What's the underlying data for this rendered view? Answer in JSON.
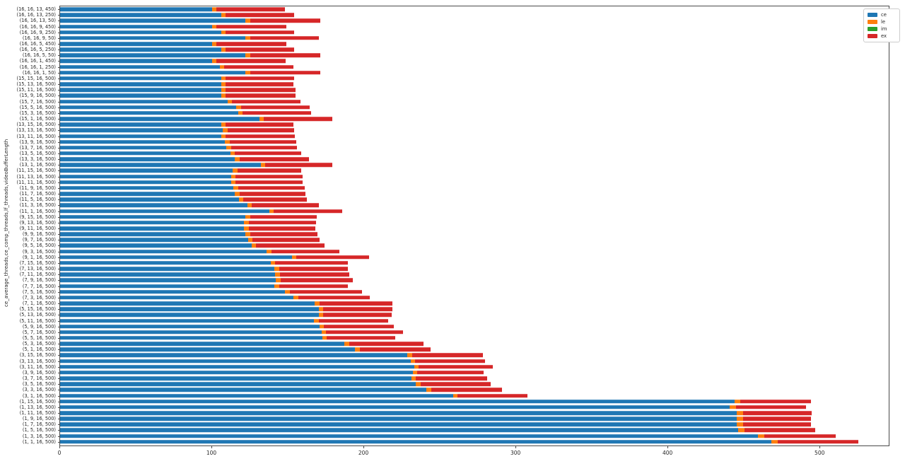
{
  "chart_data": {
    "type": "bar",
    "orientation": "horizontal",
    "stacked": true,
    "title": "",
    "xlabel": "",
    "ylabel": "ce_average_threads,ce_comp_threads,lf_threads,videoBufferLength",
    "xlim": [
      0,
      545
    ],
    "xticks": [
      0,
      100,
      200,
      300,
      400,
      500
    ],
    "grid": false,
    "legend_position": "upper right",
    "categories": [
      "(16, 16, 13, 450)",
      "(16, 16, 13, 250)",
      "(16, 16, 13, 50)",
      "(16, 16, 9, 450)",
      "(16, 16, 9, 250)",
      "(16, 16, 9, 50)",
      "(16, 16, 5, 450)",
      "(16, 16, 5, 250)",
      "(16, 16, 5, 50)",
      "(16, 16, 1, 450)",
      "(16, 16, 1, 250)",
      "(16, 16, 1, 50)",
      "(15, 15, 16, 500)",
      "(15, 13, 16, 500)",
      "(15, 11, 16, 500)",
      "(15, 9, 16, 500)",
      "(15, 7, 16, 500)",
      "(15, 5, 16, 500)",
      "(15, 3, 16, 500)",
      "(15, 1, 16, 500)",
      "(13, 15, 16, 500)",
      "(13, 13, 16, 500)",
      "(13, 11, 16, 500)",
      "(13, 9, 16, 500)",
      "(13, 7, 16, 500)",
      "(13, 5, 16, 500)",
      "(13, 3, 16, 500)",
      "(13, 1, 16, 500)",
      "(11, 15, 16, 500)",
      "(11, 13, 16, 500)",
      "(11, 11, 16, 500)",
      "(11, 9, 16, 500)",
      "(11, 7, 16, 500)",
      "(11, 5, 16, 500)",
      "(11, 3, 16, 500)",
      "(11, 1, 16, 500)",
      "(9, 15, 16, 500)",
      "(9, 13, 16, 500)",
      "(9, 11, 16, 500)",
      "(9, 9, 16, 500)",
      "(9, 7, 16, 500)",
      "(9, 5, 16, 500)",
      "(9, 3, 16, 500)",
      "(9, 1, 16, 500)",
      "(7, 15, 16, 500)",
      "(7, 13, 16, 500)",
      "(7, 11, 16, 500)",
      "(7, 9, 16, 500)",
      "(7, 7, 16, 500)",
      "(7, 5, 16, 500)",
      "(7, 3, 16, 500)",
      "(7, 1, 16, 500)",
      "(5, 15, 16, 500)",
      "(5, 13, 16, 500)",
      "(5, 11, 16, 500)",
      "(5, 9, 16, 500)",
      "(5, 7, 16, 500)",
      "(5, 5, 16, 500)",
      "(5, 3, 16, 500)",
      "(5, 1, 16, 500)",
      "(3, 15, 16, 500)",
      "(3, 13, 16, 500)",
      "(3, 11, 16, 500)",
      "(3, 9, 16, 500)",
      "(3, 7, 16, 500)",
      "(3, 5, 16, 500)",
      "(3, 3, 16, 500)",
      "(3, 1, 16, 500)",
      "(1, 15, 16, 500)",
      "(1, 13, 16, 500)",
      "(1, 11, 16, 500)",
      "(1, 9, 16, 500)",
      "(1, 7, 16, 500)",
      "(1, 5, 16, 500)",
      "(1, 3, 16, 500)",
      "(1, 1, 16, 500)"
    ],
    "series": [
      {
        "name": "ce",
        "color": "#1f77b4",
        "values": [
          100,
          106,
          122,
          100,
          106,
          122,
          100,
          106,
          122,
          100,
          105,
          122,
          106,
          106,
          106,
          106,
          110,
          116,
          117,
          131,
          106,
          107,
          106,
          108.5,
          109.5,
          112,
          115,
          132,
          113.5,
          112.5,
          112.5,
          114,
          115,
          117.5,
          123,
          137.5,
          122,
          121,
          121,
          122,
          123.5,
          126,
          136,
          152.5,
          138.5,
          141,
          141.5,
          142,
          141,
          148,
          153.5,
          167.5,
          170,
          170,
          167,
          170.5,
          172,
          172.5,
          187,
          194,
          228.5,
          230.5,
          233,
          232,
          231,
          234,
          241,
          258.5,
          443.5,
          440.5,
          445,
          445,
          445,
          446,
          459,
          468
        ]
      },
      {
        "name": "le",
        "color": "#ff7f0e",
        "values": [
          3,
          3,
          3,
          3,
          3,
          3,
          3,
          3,
          3,
          3,
          3,
          3,
          3,
          3,
          3,
          3,
          3,
          3,
          3,
          3,
          3,
          3,
          3,
          3,
          3,
          3,
          3,
          3,
          3,
          3,
          3,
          3,
          3,
          3,
          3,
          3,
          3,
          3,
          3,
          3,
          3,
          3,
          3,
          3,
          3,
          3,
          3,
          3,
          3,
          3,
          3,
          3,
          3,
          3,
          3,
          3,
          3,
          3,
          3,
          3,
          3,
          3,
          3,
          3,
          3,
          3,
          3,
          3,
          4,
          4,
          4,
          4,
          4,
          4,
          4,
          4
        ]
      },
      {
        "name": "im",
        "color": "#2ca02c",
        "values": [
          0,
          0,
          0,
          0,
          0,
          0,
          0,
          0,
          0,
          0,
          0,
          0,
          0,
          0,
          0,
          0,
          0,
          0,
          0,
          0,
          0,
          0,
          0,
          0,
          0,
          0,
          0,
          0,
          0,
          0,
          0,
          0,
          0,
          0,
          0,
          0,
          0,
          0,
          0,
          0,
          0,
          0,
          0,
          0,
          0,
          0,
          0,
          0,
          0,
          0,
          0,
          0,
          0,
          0,
          0,
          0,
          0,
          0,
          0,
          0,
          0,
          0,
          0,
          0,
          0,
          0,
          0,
          0,
          0,
          0,
          0,
          0,
          0,
          0,
          0,
          0
        ]
      },
      {
        "name": "ex",
        "color": "#d62728",
        "values": [
          45,
          45,
          46,
          46,
          45,
          45,
          46,
          45,
          46,
          45.5,
          45.5,
          46,
          45,
          44.5,
          46,
          46,
          45,
          45,
          45,
          45,
          44.5,
          44,
          45.5,
          44,
          43.5,
          43.5,
          45.5,
          44,
          42,
          44,
          44,
          44,
          43.5,
          42,
          44,
          45,
          44,
          44.5,
          44,
          44.5,
          44,
          45,
          44.5,
          47.5,
          48,
          45.5,
          45.5,
          47.5,
          45.5,
          47.5,
          47,
          48,
          45.5,
          45,
          46,
          46,
          50.5,
          45,
          49,
          46.5,
          46.5,
          46,
          48.5,
          43.5,
          47,
          46,
          46.5,
          46,
          46.5,
          46,
          45.5,
          45,
          45,
          46.5,
          47,
          53
        ]
      }
    ]
  }
}
